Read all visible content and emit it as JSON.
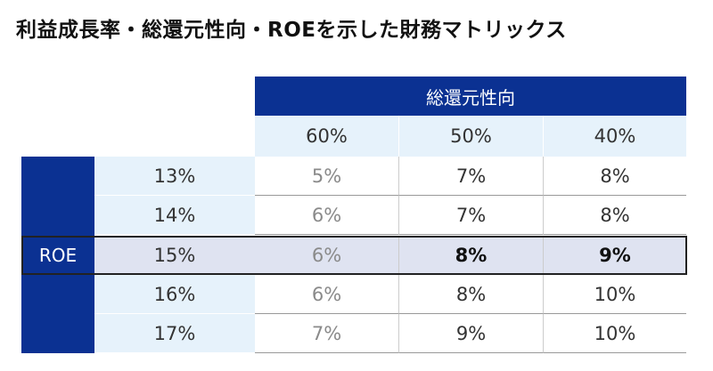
{
  "title": "利益成長率・総還元性向・ROEを示した財務マトリックス",
  "column_header": "総還元性向",
  "columns": [
    "60%",
    "50%",
    "40%"
  ],
  "row_header": "ROE",
  "rows": [
    {
      "label": "13%",
      "values": [
        "5%",
        "7%",
        "8%"
      ]
    },
    {
      "label": "14%",
      "values": [
        "6%",
        "7%",
        "8%"
      ]
    },
    {
      "label": "15%",
      "values": [
        "6%",
        "8%",
        "9%"
      ]
    },
    {
      "label": "16%",
      "values": [
        "6%",
        "8%",
        "10%"
      ]
    },
    {
      "label": "17%",
      "values": [
        "7%",
        "9%",
        "10%"
      ]
    }
  ],
  "highlighted_row": "15%",
  "colors": {
    "header": "#0b3192",
    "subheader": "#e6f2fb",
    "highlight": "#dfe3f1"
  }
}
